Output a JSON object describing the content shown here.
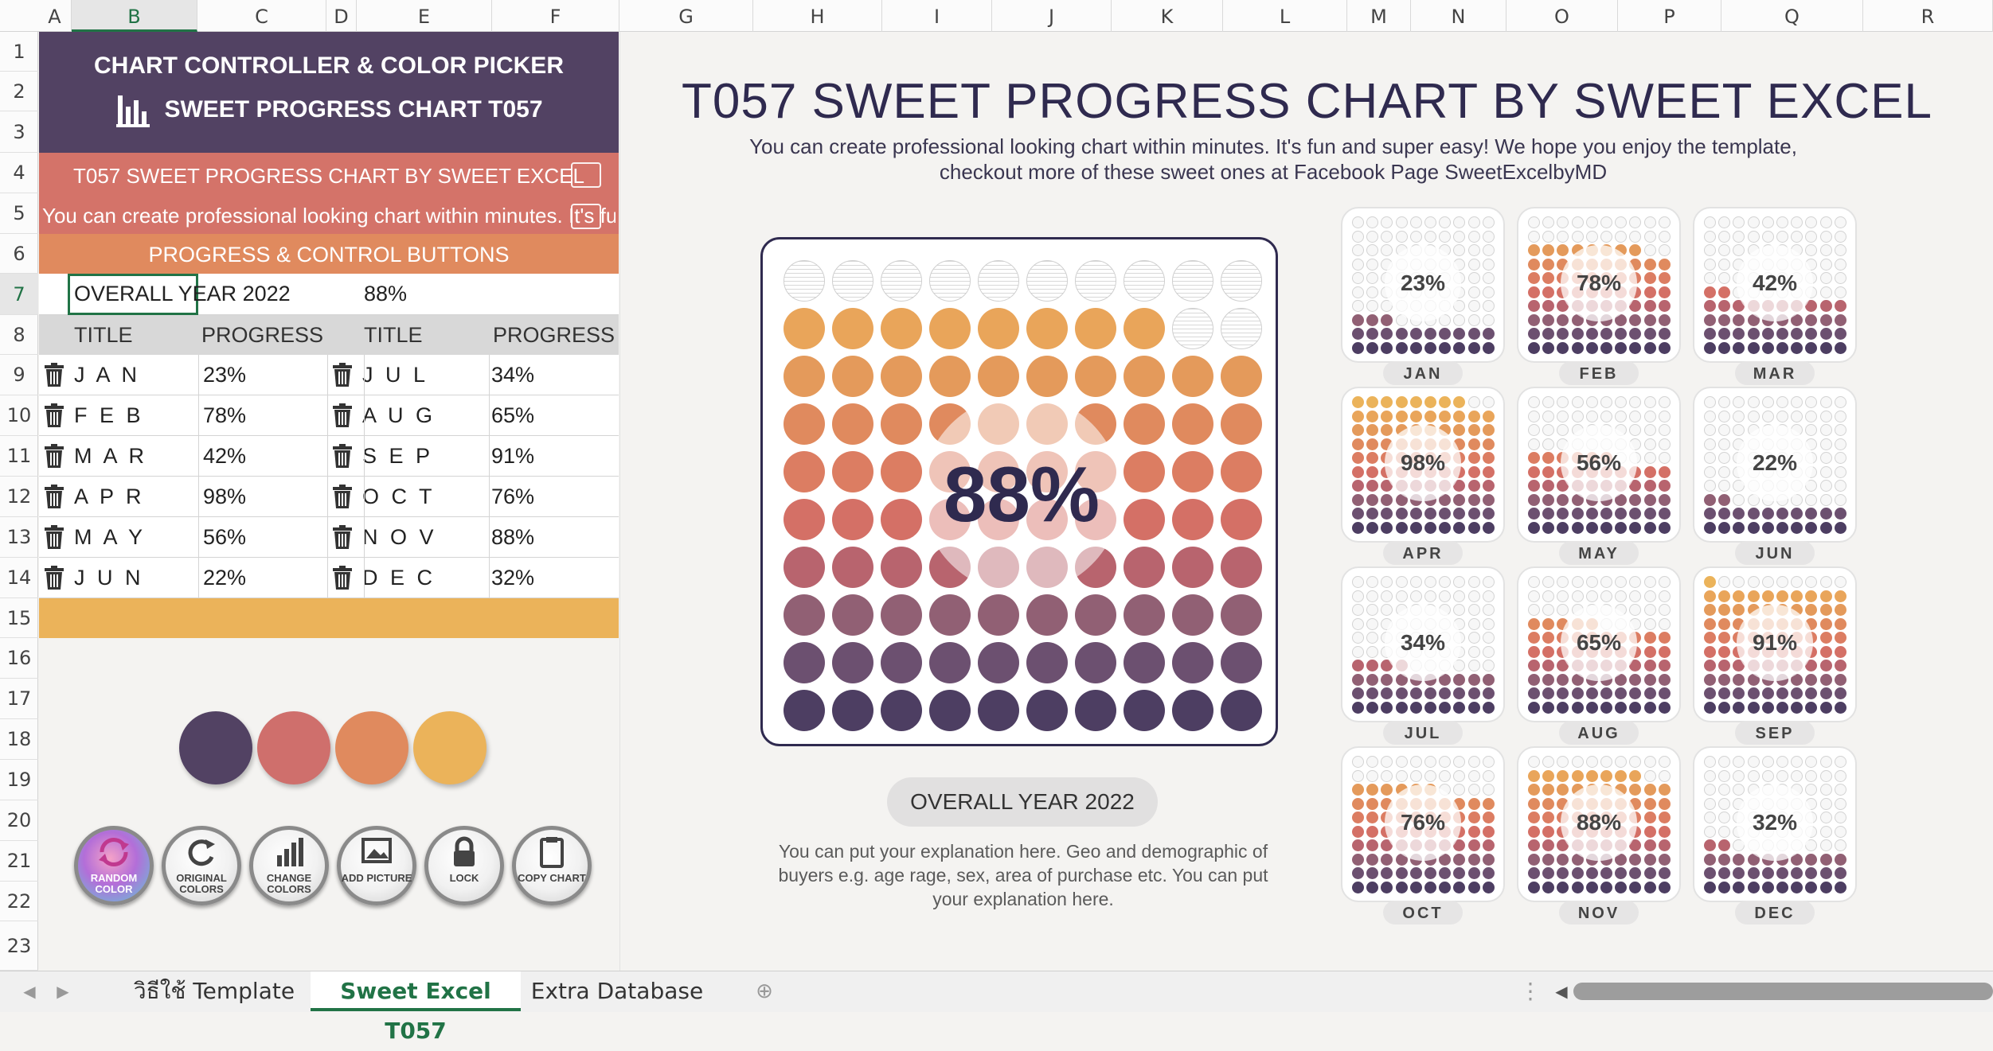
{
  "columns": [
    "A",
    "B",
    "C",
    "D",
    "E",
    "F",
    "G",
    "H",
    "I",
    "J",
    "K",
    "L",
    "M",
    "N",
    "O",
    "P",
    "Q",
    "R"
  ],
  "rows": [
    "1",
    "2",
    "3",
    "4",
    "5",
    "6",
    "7",
    "8",
    "9",
    "10",
    "11",
    "12",
    "13",
    "14",
    "15",
    "16",
    "17",
    "18",
    "19",
    "20",
    "21",
    "22",
    "23"
  ],
  "left_panel": {
    "header1": "CHART CONTROLLER & COLOR PICKER",
    "header2": "SWEET PROGRESS CHART T057",
    "title_row": "T057 SWEET PROGRESS CHART BY SWEET EXCEL",
    "subtitle_row": "You can create professional looking chart within minutes. It's fun",
    "section": "PROGRESS & CONTROL BUTTONS",
    "overall_label": "OVERALL YEAR 2022",
    "overall_value": "88%",
    "col_title": "TITLE",
    "col_progress": "PROGRESS",
    "table_left": [
      {
        "title": "J A N",
        "progress": "23%"
      },
      {
        "title": "F E B",
        "progress": "78%"
      },
      {
        "title": "M A R",
        "progress": "42%"
      },
      {
        "title": "A P R",
        "progress": "98%"
      },
      {
        "title": "M A Y",
        "progress": "56%"
      },
      {
        "title": "J U N",
        "progress": "22%"
      }
    ],
    "table_right": [
      {
        "title": "J U L",
        "progress": "34%"
      },
      {
        "title": "A U G",
        "progress": "65%"
      },
      {
        "title": "S E P",
        "progress": "91%"
      },
      {
        "title": "O C T",
        "progress": "76%"
      },
      {
        "title": "N O V",
        "progress": "88%"
      },
      {
        "title": "D E C",
        "progress": "32%"
      }
    ],
    "swatches": [
      "#524263",
      "#cf6f6c",
      "#e08a5e",
      "#ebb35a"
    ],
    "buttons": [
      {
        "label": "RANDOM COLOR",
        "icon": "random-color-icon"
      },
      {
        "label": "ORIGINAL COLORS",
        "icon": "refresh-icon"
      },
      {
        "label": "CHANGE COLORS",
        "icon": "bar-chart-icon"
      },
      {
        "label": "ADD PICTURE",
        "icon": "picture-icon"
      },
      {
        "label": "LOCK",
        "icon": "lock-icon"
      },
      {
        "label": "COPY CHART",
        "icon": "clipboard-icon"
      }
    ]
  },
  "dashboard": {
    "title": "T057 SWEET PROGRESS CHART BY SWEET EXCEL",
    "subtitle": "You can create professional looking chart within minutes. It's fun and super easy! We hope you enjoy the template, checkout more of these sweet ones at Facebook Page SweetExcelbyMD",
    "big_percent": "88%",
    "overall_label": "OVERALL YEAR 2022",
    "explanation": "You can put your explanation here. Geo and demographic of buyers e.g. age rage, sex, area of purchase etc. You can put your explanation here."
  },
  "chart_data": {
    "type": "dot-grid-progress",
    "overall": {
      "label": "OVERALL YEAR 2022",
      "value": 88
    },
    "categories": [
      "JAN",
      "FEB",
      "MAR",
      "APR",
      "MAY",
      "JUN",
      "JUL",
      "AUG",
      "SEP",
      "OCT",
      "NOV",
      "DEC"
    ],
    "values": [
      23,
      78,
      42,
      98,
      56,
      22,
      34,
      65,
      91,
      76,
      88,
      32
    ],
    "row_colors": [
      "#ebb35a",
      "#e9a55a",
      "#e49a5b",
      "#e08a5e",
      "#dc7d62",
      "#d47066",
      "#b8646e",
      "#916074",
      "#6c5070",
      "#4d3e62"
    ]
  },
  "sheet_tabs": [
    "วิธีใช้ Template",
    "Sweet Excel T057",
    "Extra Database"
  ],
  "active_tab": "Sweet Excel T057"
}
